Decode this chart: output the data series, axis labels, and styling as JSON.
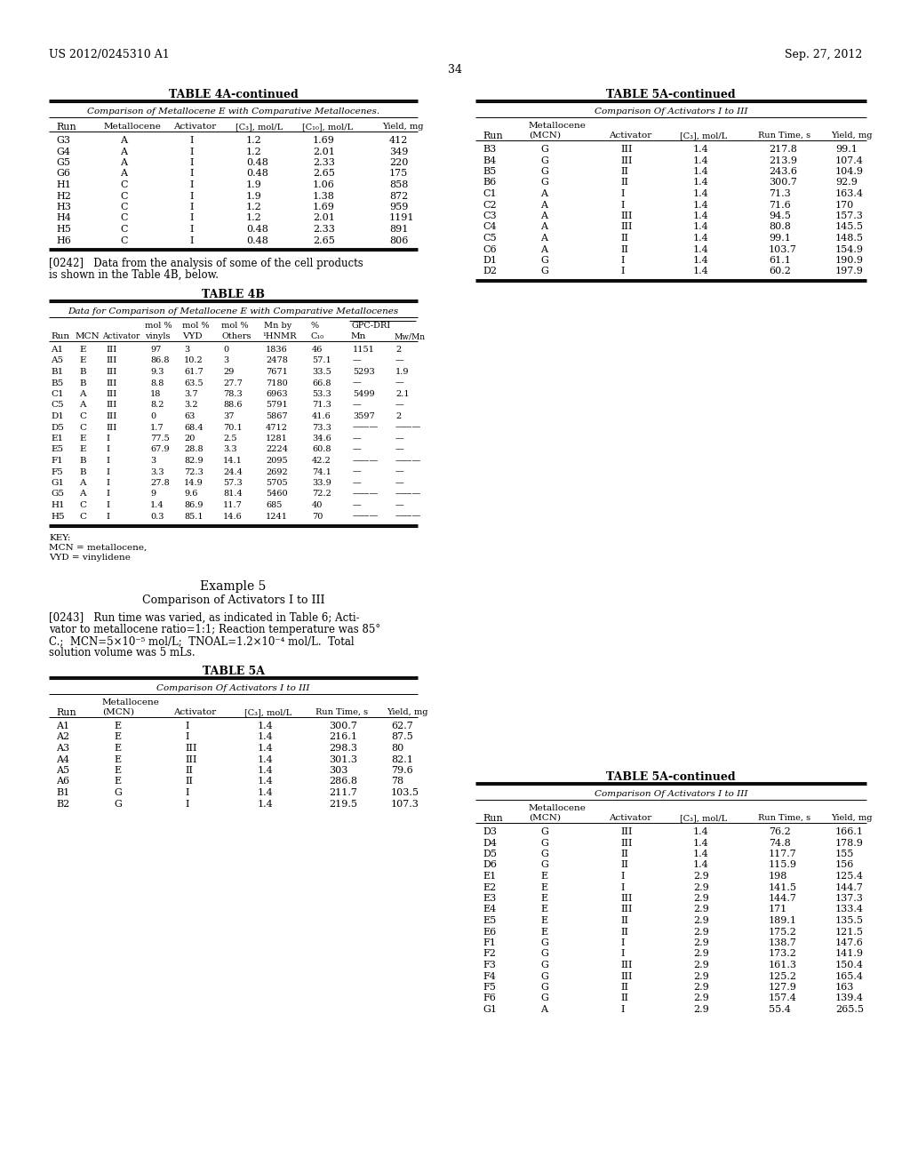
{
  "header_left": "US 2012/0245310 A1",
  "header_right": "Sep. 27, 2012",
  "page_number": "34",
  "background_color": "#ffffff",
  "table4a_title": "TABLE 4A-continued",
  "table4a_subtitle": "Comparison of Metallocene E with Comparative Metallocenes.",
  "table4a_headers": [
    "Run",
    "Metallocene",
    "Activator",
    "[C₃], mol/L",
    "[C₁₀], mol/L",
    "Yield, mg"
  ],
  "table4a_rows": [
    [
      "G3",
      "A",
      "I",
      "1.2",
      "1.69",
      "412"
    ],
    [
      "G4",
      "A",
      "I",
      "1.2",
      "2.01",
      "349"
    ],
    [
      "G5",
      "A",
      "I",
      "0.48",
      "2.33",
      "220"
    ],
    [
      "G6",
      "A",
      "I",
      "0.48",
      "2.65",
      "175"
    ],
    [
      "H1",
      "C",
      "I",
      "1.9",
      "1.06",
      "858"
    ],
    [
      "H2",
      "C",
      "I",
      "1.9",
      "1.38",
      "872"
    ],
    [
      "H3",
      "C",
      "I",
      "1.2",
      "1.69",
      "959"
    ],
    [
      "H4",
      "C",
      "I",
      "1.2",
      "2.01",
      "1191"
    ],
    [
      "H5",
      "C",
      "I",
      "0.48",
      "2.33",
      "891"
    ],
    [
      "H6",
      "C",
      "I",
      "0.48",
      "2.65",
      "806"
    ]
  ],
  "table5a_top_title": "TABLE 5A-continued",
  "table5a_top_subtitle": "Comparison Of Activators I to III",
  "table5a_top_rows": [
    [
      "B3",
      "G",
      "III",
      "1.4",
      "217.8",
      "99.1"
    ],
    [
      "B4",
      "G",
      "III",
      "1.4",
      "213.9",
      "107.4"
    ],
    [
      "B5",
      "G",
      "II",
      "1.4",
      "243.6",
      "104.9"
    ],
    [
      "B6",
      "G",
      "II",
      "1.4",
      "300.7",
      "92.9"
    ],
    [
      "C1",
      "A",
      "I",
      "1.4",
      "71.3",
      "163.4"
    ],
    [
      "C2",
      "A",
      "I",
      "1.4",
      "71.6",
      "170"
    ],
    [
      "C3",
      "A",
      "III",
      "1.4",
      "94.5",
      "157.3"
    ],
    [
      "C4",
      "A",
      "III",
      "1.4",
      "80.8",
      "145.5"
    ],
    [
      "C5",
      "A",
      "II",
      "1.4",
      "99.1",
      "148.5"
    ],
    [
      "C6",
      "A",
      "II",
      "1.4",
      "103.7",
      "154.9"
    ],
    [
      "D1",
      "G",
      "I",
      "1.4",
      "61.1",
      "190.9"
    ],
    [
      "D2",
      "G",
      "I",
      "1.4",
      "60.2",
      "197.9"
    ]
  ],
  "para0242_line1": "[0242]   Data from the analysis of some of the cell products",
  "para0242_line2": "is shown in the Table 4B, below.",
  "table4b_title": "TABLE 4B",
  "table4b_subtitle": "Data for Comparison of Metallocene E with Comparative Metallocenes",
  "table4b_rows": [
    [
      "A1",
      "E",
      "III",
      "97",
      "3",
      "0",
      "1836",
      "46",
      "1151",
      "2"
    ],
    [
      "A5",
      "E",
      "III",
      "86.8",
      "10.2",
      "3",
      "2478",
      "57.1",
      "—",
      "—"
    ],
    [
      "B1",
      "B",
      "III",
      "9.3",
      "61.7",
      "29",
      "7671",
      "33.5",
      "5293",
      "1.9"
    ],
    [
      "B5",
      "B",
      "III",
      "8.8",
      "63.5",
      "27.7",
      "7180",
      "66.8",
      "—",
      "—"
    ],
    [
      "C1",
      "A",
      "III",
      "18",
      "3.7",
      "78.3",
      "6963",
      "53.3",
      "5499",
      "2.1"
    ],
    [
      "C5",
      "A",
      "III",
      "8.2",
      "3.2",
      "88.6",
      "5791",
      "71.3",
      "—",
      "—"
    ],
    [
      "D1",
      "C",
      "III",
      "0",
      "63",
      "37",
      "5867",
      "41.6",
      "3597",
      "2"
    ],
    [
      "D5",
      "C",
      "III",
      "1.7",
      "68.4",
      "70.1",
      "4712",
      "73.3",
      "———",
      "———"
    ],
    [
      "E1",
      "E",
      "I",
      "77.5",
      "20",
      "2.5",
      "1281",
      "34.6",
      "—",
      "—"
    ],
    [
      "E5",
      "E",
      "I",
      "67.9",
      "28.8",
      "3.3",
      "2224",
      "60.8",
      "—",
      "—"
    ],
    [
      "F1",
      "B",
      "I",
      "3",
      "82.9",
      "14.1",
      "2095",
      "42.2",
      "———",
      "———"
    ],
    [
      "F5",
      "B",
      "I",
      "3.3",
      "72.3",
      "24.4",
      "2692",
      "74.1",
      "—",
      "—"
    ],
    [
      "G1",
      "A",
      "I",
      "27.8",
      "14.9",
      "57.3",
      "5705",
      "33.9",
      "—",
      "—"
    ],
    [
      "G5",
      "A",
      "I",
      "9",
      "9.6",
      "81.4",
      "5460",
      "72.2",
      "———",
      "———"
    ],
    [
      "H1",
      "C",
      "I",
      "1.4",
      "86.9",
      "11.7",
      "685",
      "40",
      "—",
      "—"
    ],
    [
      "H5",
      "C",
      "I",
      "0.3",
      "85.1",
      "14.6",
      "1241",
      "70",
      "———",
      "———"
    ]
  ],
  "example5_title": "Example 5",
  "example5_subtitle": "Comparison of Activators I to III",
  "para0243_lines": [
    "[0243]   Run time was varied, as indicated in Table 6; Acti-",
    "vator to metallocene ratio=1:1; Reaction temperature was 85°",
    "C.;  MCN=5×10⁻⁵ mol/L;  TNOAL=1.2×10⁻⁴ mol/L.  Total",
    "solution volume was 5 mLs."
  ],
  "table5a_main_title": "TABLE 5A",
  "table5a_main_subtitle": "Comparison Of Activators I to III",
  "table5a_main_rows": [
    [
      "A1",
      "E",
      "I",
      "1.4",
      "300.7",
      "62.7"
    ],
    [
      "A2",
      "E",
      "I",
      "1.4",
      "216.1",
      "87.5"
    ],
    [
      "A3",
      "E",
      "III",
      "1.4",
      "298.3",
      "80"
    ],
    [
      "A4",
      "E",
      "III",
      "1.4",
      "301.3",
      "82.1"
    ],
    [
      "A5",
      "E",
      "II",
      "1.4",
      "303",
      "79.6"
    ],
    [
      "A6",
      "E",
      "II",
      "1.4",
      "286.8",
      "78"
    ],
    [
      "B1",
      "G",
      "I",
      "1.4",
      "211.7",
      "103.5"
    ],
    [
      "B2",
      "G",
      "I",
      "1.4",
      "219.5",
      "107.3"
    ]
  ],
  "table5a_bot_title": "TABLE 5A-continued",
  "table5a_bot_subtitle": "Comparison Of Activators I to III",
  "table5a_bot_rows": [
    [
      "D3",
      "G",
      "III",
      "1.4",
      "76.2",
      "166.1"
    ],
    [
      "D4",
      "G",
      "III",
      "1.4",
      "74.8",
      "178.9"
    ],
    [
      "D5",
      "G",
      "II",
      "1.4",
      "117.7",
      "155"
    ],
    [
      "D6",
      "G",
      "II",
      "1.4",
      "115.9",
      "156"
    ],
    [
      "E1",
      "E",
      "I",
      "2.9",
      "198",
      "125.4"
    ],
    [
      "E2",
      "E",
      "I",
      "2.9",
      "141.5",
      "144.7"
    ],
    [
      "E3",
      "E",
      "III",
      "2.9",
      "144.7",
      "137.3"
    ],
    [
      "E4",
      "E",
      "III",
      "2.9",
      "171",
      "133.4"
    ],
    [
      "E5",
      "E",
      "II",
      "2.9",
      "189.1",
      "135.5"
    ],
    [
      "E6",
      "E",
      "II",
      "2.9",
      "175.2",
      "121.5"
    ],
    [
      "F1",
      "G",
      "I",
      "2.9",
      "138.7",
      "147.6"
    ],
    [
      "F2",
      "G",
      "I",
      "2.9",
      "173.2",
      "141.9"
    ],
    [
      "F3",
      "G",
      "III",
      "2.9",
      "161.3",
      "150.4"
    ],
    [
      "F4",
      "G",
      "III",
      "2.9",
      "125.2",
      "165.4"
    ],
    [
      "F5",
      "G",
      "II",
      "2.9",
      "127.9",
      "163"
    ],
    [
      "F6",
      "G",
      "II",
      "2.9",
      "157.4",
      "139.4"
    ],
    [
      "G1",
      "A",
      "I",
      "2.9",
      "55.4",
      "265.5"
    ]
  ]
}
